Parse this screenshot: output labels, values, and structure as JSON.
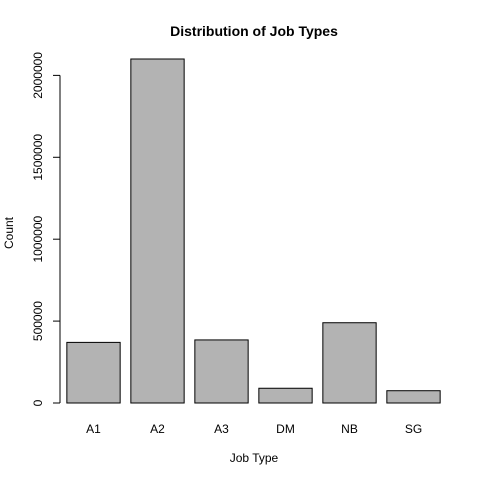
{
  "chart_data": {
    "type": "bar",
    "title": "Distribution of Job Types",
    "xlabel": "Job Type",
    "ylabel": "Count",
    "categories": [
      "A1",
      "A2",
      "A3",
      "DM",
      "NB",
      "SG"
    ],
    "values": [
      370000,
      2100000,
      385000,
      90000,
      490000,
      75000
    ],
    "ylim": [
      0,
      2100000
    ],
    "yticks": [
      0,
      500000,
      1000000,
      1500000,
      2000000
    ],
    "ytick_labels": [
      "0",
      "500000",
      "1000000",
      "1500000",
      "2000000"
    ],
    "bar_color": "#b3b3b3",
    "grid": false,
    "legend": "none"
  }
}
